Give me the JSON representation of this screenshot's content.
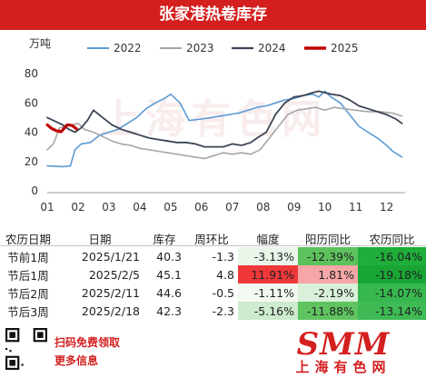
{
  "header": {
    "title": "张家港热卷库存"
  },
  "chart_data": {
    "type": "line",
    "ylabel": "万吨",
    "ylim": [
      0,
      80
    ],
    "yticks": [
      0,
      20,
      40,
      60,
      80
    ],
    "xlim": [
      1,
      12.6
    ],
    "x_tick_labels": [
      "01",
      "02",
      "03",
      "04",
      "05",
      "06",
      "07",
      "08",
      "09",
      "10",
      "11",
      "12"
    ],
    "grid": false,
    "legend_position": "top",
    "series": [
      {
        "name": "2022",
        "color": "#5b9bd5",
        "width": 1.6,
        "points": [
          [
            1.0,
            17
          ],
          [
            1.5,
            16.5
          ],
          [
            1.75,
            17
          ],
          [
            1.9,
            28
          ],
          [
            2.1,
            32
          ],
          [
            2.4,
            33
          ],
          [
            2.7,
            38
          ],
          [
            3.0,
            40
          ],
          [
            3.3,
            42
          ],
          [
            3.6,
            46
          ],
          [
            3.9,
            50
          ],
          [
            4.2,
            56
          ],
          [
            4.5,
            60
          ],
          [
            4.8,
            63
          ],
          [
            5.0,
            66
          ],
          [
            5.1,
            64
          ],
          [
            5.3,
            60
          ],
          [
            5.6,
            48
          ],
          [
            6.0,
            49
          ],
          [
            6.3,
            50
          ],
          [
            6.6,
            51
          ],
          [
            6.9,
            52
          ],
          [
            7.2,
            53
          ],
          [
            7.5,
            55
          ],
          [
            7.8,
            57
          ],
          [
            8.1,
            58
          ],
          [
            8.4,
            60
          ],
          [
            8.7,
            62
          ],
          [
            9.0,
            63
          ],
          [
            9.3,
            65
          ],
          [
            9.6,
            66
          ],
          [
            9.8,
            64
          ],
          [
            10.0,
            68
          ],
          [
            10.2,
            64
          ],
          [
            10.5,
            60
          ],
          [
            10.8,
            52
          ],
          [
            11.1,
            44
          ],
          [
            11.4,
            40
          ],
          [
            11.7,
            36
          ],
          [
            12.0,
            31
          ],
          [
            12.2,
            27
          ],
          [
            12.5,
            23
          ]
        ]
      },
      {
        "name": "2023",
        "color": "#a6a6a6",
        "width": 1.6,
        "points": [
          [
            1.0,
            28
          ],
          [
            1.2,
            32
          ],
          [
            1.4,
            43
          ],
          [
            1.6,
            44
          ],
          [
            1.8,
            45
          ],
          [
            2.0,
            46
          ],
          [
            2.2,
            42
          ],
          [
            2.5,
            40
          ],
          [
            2.8,
            37
          ],
          [
            3.1,
            34
          ],
          [
            3.4,
            32
          ],
          [
            3.7,
            31
          ],
          [
            4.0,
            29
          ],
          [
            4.3,
            28
          ],
          [
            4.6,
            27
          ],
          [
            4.9,
            26
          ],
          [
            5.2,
            25
          ],
          [
            5.5,
            24
          ],
          [
            5.8,
            23
          ],
          [
            6.1,
            22
          ],
          [
            6.4,
            24
          ],
          [
            6.7,
            26
          ],
          [
            7.0,
            25
          ],
          [
            7.3,
            26
          ],
          [
            7.6,
            25
          ],
          [
            7.9,
            28
          ],
          [
            8.2,
            36
          ],
          [
            8.5,
            44
          ],
          [
            8.8,
            52
          ],
          [
            9.1,
            55
          ],
          [
            9.4,
            56
          ],
          [
            9.7,
            57
          ],
          [
            10.0,
            55
          ],
          [
            10.3,
            57
          ],
          [
            10.6,
            56
          ],
          [
            11.0,
            55
          ],
          [
            11.4,
            54
          ],
          [
            11.8,
            54
          ],
          [
            12.2,
            53
          ],
          [
            12.5,
            51
          ]
        ]
      },
      {
        "name": "2024",
        "color": "#3b4455",
        "width": 1.8,
        "points": [
          [
            1.0,
            50
          ],
          [
            1.3,
            47
          ],
          [
            1.5,
            45
          ],
          [
            1.7,
            42
          ],
          [
            1.9,
            40
          ],
          [
            2.1,
            43
          ],
          [
            2.3,
            48
          ],
          [
            2.5,
            55
          ],
          [
            2.8,
            50
          ],
          [
            3.1,
            45
          ],
          [
            3.4,
            42
          ],
          [
            3.7,
            40
          ],
          [
            4.0,
            38
          ],
          [
            4.3,
            36
          ],
          [
            4.6,
            35
          ],
          [
            4.9,
            34
          ],
          [
            5.2,
            33
          ],
          [
            5.5,
            33
          ],
          [
            5.8,
            32
          ],
          [
            6.1,
            30
          ],
          [
            6.4,
            30
          ],
          [
            6.7,
            30
          ],
          [
            7.0,
            32
          ],
          [
            7.3,
            31
          ],
          [
            7.6,
            33
          ],
          [
            7.8,
            36
          ],
          [
            8.1,
            40
          ],
          [
            8.4,
            52
          ],
          [
            8.7,
            60
          ],
          [
            9.0,
            64
          ],
          [
            9.3,
            65
          ],
          [
            9.6,
            67
          ],
          [
            9.8,
            68
          ],
          [
            10.0,
            67
          ],
          [
            10.2,
            66
          ],
          [
            10.5,
            65
          ],
          [
            10.8,
            62
          ],
          [
            11.1,
            58
          ],
          [
            11.4,
            56
          ],
          [
            11.7,
            54
          ],
          [
            12.0,
            52
          ],
          [
            12.3,
            49
          ],
          [
            12.5,
            46
          ]
        ]
      },
      {
        "name": "2025",
        "color": "#c00000",
        "width": 3.2,
        "points": [
          [
            1.0,
            45
          ],
          [
            1.15,
            42.5
          ],
          [
            1.3,
            41
          ],
          [
            1.45,
            40.3
          ],
          [
            1.65,
            45.1
          ],
          [
            1.8,
            44.6
          ],
          [
            1.95,
            42.3
          ]
        ]
      }
    ]
  },
  "table": {
    "headers": [
      "农历日期",
      "日期",
      "库存",
      "周环比",
      "幅度",
      "阳历同比",
      "农历同比"
    ],
    "rows": [
      {
        "cells": [
          "节前1周",
          "2025/1/21",
          "40.3",
          "-1.3",
          "-3.13%",
          "-12.39%",
          "-16.04%"
        ]
      },
      {
        "cells": [
          "节后1周",
          "2025/2/5",
          "45.1",
          "4.8",
          "11.91%",
          "1.81%",
          "-19.18%"
        ]
      },
      {
        "cells": [
          "节后2周",
          "2025/2/11",
          "44.6",
          "-0.5",
          "-1.11%",
          "-2.19%",
          "-14.07%"
        ]
      },
      {
        "cells": [
          "节后3周",
          "2025/2/18",
          "42.3",
          "-2.3",
          "-5.16%",
          "-11.88%",
          "-13.14%"
        ]
      }
    ],
    "cell_colors": [
      [
        null,
        null,
        null,
        null,
        "#eaf6ea",
        "#5cc25c",
        "#1fae3a"
      ],
      [
        null,
        null,
        null,
        null,
        "#f0383a",
        "#f6a6a6",
        "#19a534"
      ],
      [
        null,
        null,
        null,
        null,
        "#f1f9f1",
        "#d9f0d9",
        "#37b84f"
      ],
      [
        null,
        null,
        null,
        null,
        "#cdebcd",
        "#5fc35f",
        "#3fba55"
      ]
    ]
  },
  "footer": {
    "qr_line1": "扫码免费领取",
    "qr_line2": "更多信息",
    "logo_big": "SMM",
    "logo_small": "上海有色网"
  },
  "watermark": "上海有色网"
}
